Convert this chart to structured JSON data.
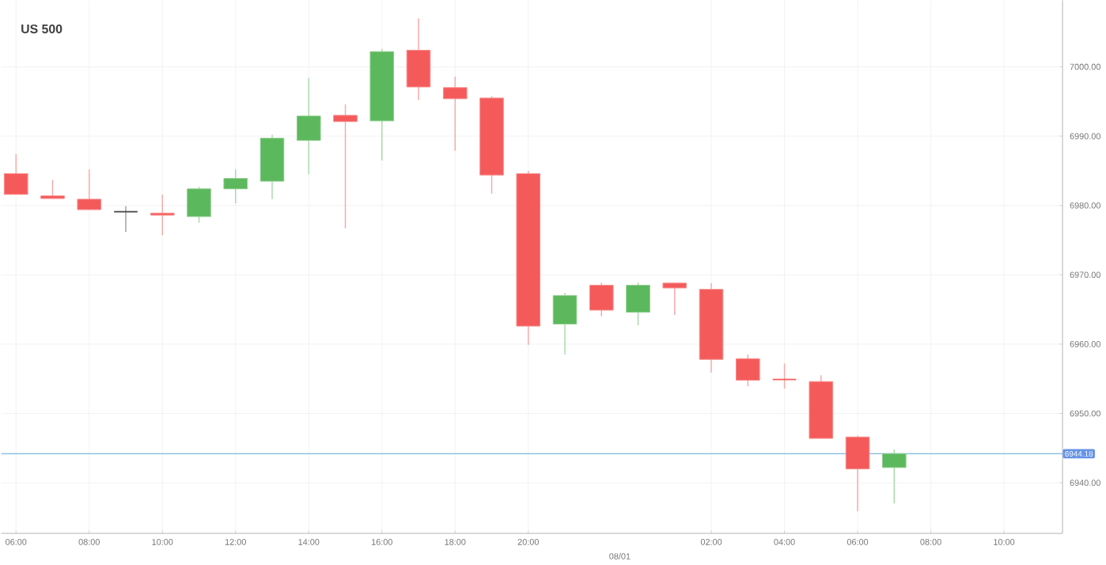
{
  "chart_data": {
    "type": "candlestick",
    "title": "US 500",
    "categories": [
      "06:00",
      null,
      "08:00",
      null,
      "10:00",
      null,
      "12:00",
      null,
      "14:00",
      null,
      "16:00",
      null,
      "18:00",
      null,
      "20:00",
      null,
      null,
      null,
      null,
      "02:00",
      null,
      "04:00",
      null,
      "06:00",
      null,
      "08:00",
      null,
      "10:00"
    ],
    "ohlc": [
      [
        6984.6,
        6987.4,
        6981.6,
        6981.6
      ],
      [
        6981.4,
        6983.7,
        6981.0,
        6981.0
      ],
      [
        6980.9,
        6985.2,
        6979.4,
        6979.4
      ],
      [
        6979.1,
        6979.9,
        6976.2,
        6979.1
      ],
      [
        6978.9,
        6981.6,
        6975.7,
        6978.6
      ],
      [
        6978.4,
        6982.7,
        6977.5,
        6982.4
      ],
      [
        6982.4,
        6985.2,
        6980.3,
        6983.9
      ],
      [
        6983.5,
        6990.2,
        6980.9,
        6989.7
      ],
      [
        6989.4,
        6998.4,
        6984.5,
        6992.9
      ],
      [
        6993.0,
        6994.6,
        6976.7,
        6992.1
      ],
      [
        6992.2,
        7002.6,
        6986.5,
        7002.2
      ],
      [
        7002.4,
        7007.0,
        6995.2,
        6997.1
      ],
      [
        6997.0,
        6998.6,
        6987.9,
        6995.4
      ],
      [
        6995.5,
        6995.8,
        6981.7,
        6984.4
      ],
      [
        6984.6,
        6985.0,
        6959.9,
        6962.6
      ],
      [
        6962.9,
        6967.4,
        6958.5,
        6967.0
      ],
      [
        6968.5,
        6968.9,
        6964.0,
        6964.9
      ],
      [
        6964.6,
        6968.9,
        6962.7,
        6968.5
      ],
      [
        6968.8,
        6968.9,
        6964.2,
        6968.1
      ],
      [
        6967.9,
        6968.8,
        6955.9,
        6957.8
      ],
      [
        6957.9,
        6958.5,
        6953.9,
        6954.8
      ],
      [
        6954.9,
        6957.2,
        6953.6,
        6954.9
      ],
      [
        6954.6,
        6955.5,
        6946.4,
        6946.4
      ],
      [
        6946.6,
        6946.8,
        6935.9,
        6942.0
      ],
      [
        6942.2,
        6944.8,
        6937.0,
        6944.2
      ],
      null,
      null,
      null
    ],
    "colors": [
      "#f55a5a",
      "#f55a5a",
      "#f55a5a",
      "#444444",
      "#f55a5a",
      "#5cb85c",
      "#5cb85c",
      "#5cb85c",
      "#5cb85c",
      "#f55a5a",
      "#5cb85c",
      "#f55a5a",
      "#f55a5a",
      "#f55a5a",
      "#f55a5a",
      "#5cb85c",
      "#f55a5a",
      "#5cb85c",
      "#f55a5a",
      "#f55a5a",
      "#f55a5a",
      "#f55a5a",
      "#f55a5a",
      "#f55a5a",
      "#5cb85c",
      null,
      null,
      null
    ],
    "ylim": [
      6932.7,
      7009.6
    ],
    "yticks": [
      {
        "value": 6940,
        "label": "6940.00"
      },
      {
        "value": 6950,
        "label": "6950.00"
      },
      {
        "value": 6960,
        "label": "6960.00"
      },
      {
        "value": 6970,
        "label": "6970.00"
      },
      {
        "value": 6980,
        "label": "6980.00"
      },
      {
        "value": 6990,
        "label": "6990.00"
      },
      {
        "value": 7000,
        "label": "7000.00"
      }
    ],
    "ref_lines": [
      {
        "axis": "y",
        "value": 6944.18,
        "label": "6944.18",
        "color": "#7fb8e0"
      }
    ],
    "annotations": [
      "08/01"
    ],
    "grid": true
  }
}
